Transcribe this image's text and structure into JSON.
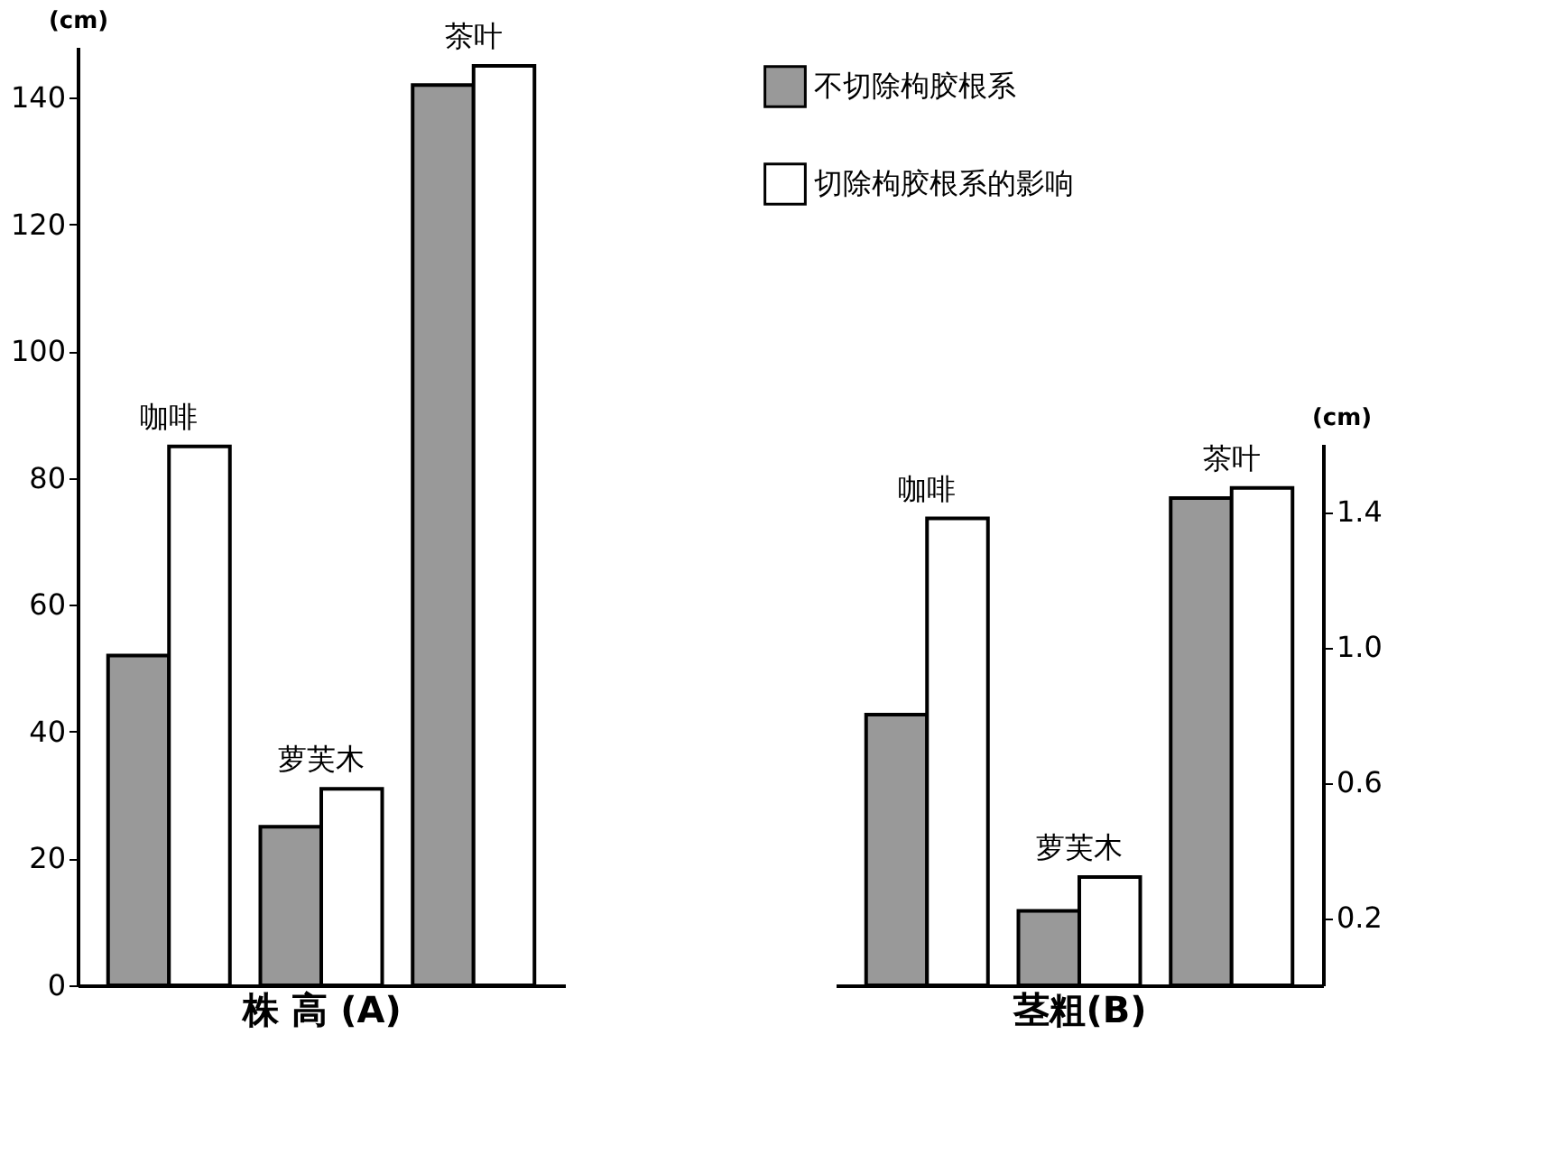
{
  "chart_data": [
    {
      "type": "bar",
      "xlabel": "株 高 (A)",
      "ylabel": "(cm)",
      "categories": [
        "咖啡",
        "萝芙木",
        "茶叶"
      ],
      "series": [
        {
          "color": "#999999",
          "values": [
            52,
            25,
            142
          ]
        },
        {
          "color": "#ffffff",
          "values": [
            85,
            31,
            145
          ]
        }
      ],
      "ylim": [
        0,
        148
      ],
      "yticks": [
        0,
        20,
        40,
        60,
        80,
        100,
        120,
        140
      ],
      "grid": false,
      "legend": false
    },
    {
      "type": "bar",
      "xlabel": "茎粗(B)",
      "ylabel": "(cm)",
      "categories": [
        "咖啡",
        "萝芙木",
        "茶叶"
      ],
      "series": [
        {
          "name": "不切除枸胶根系",
          "color": "#999999",
          "values": [
            0.8,
            0.22,
            1.44
          ]
        },
        {
          "name": "切除枸胶根系的影响",
          "color": "#ffffff",
          "values": [
            1.38,
            0.32,
            1.47
          ]
        }
      ],
      "ylim": [
        0,
        1.6
      ],
      "yticks": [
        0.2,
        0.6,
        {
          "value": 1.0,
          "label": "1.0"
        },
        1.4
      ],
      "grid": false,
      "legend": "top"
    }
  ]
}
